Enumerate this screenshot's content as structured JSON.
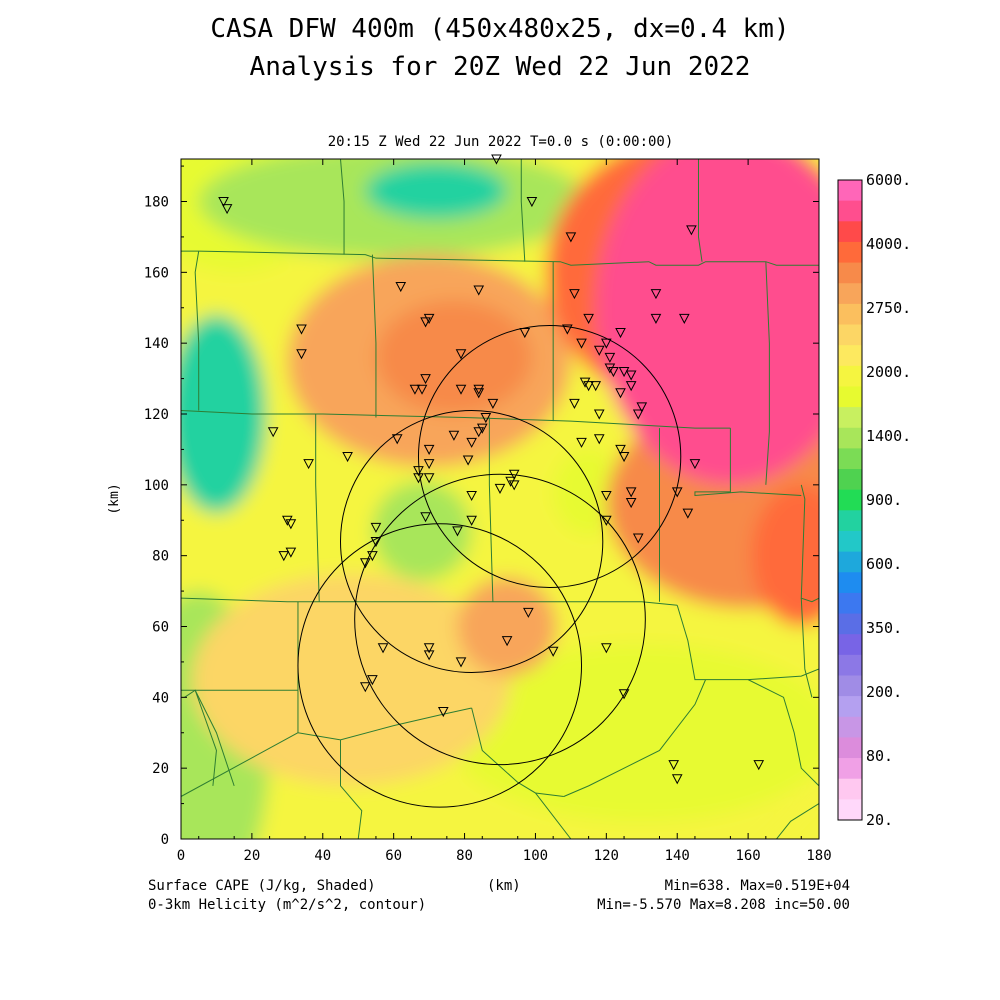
{
  "header": {
    "title_line1": "CASA DFW 400m (450x480x25, dx=0.4 km)",
    "title_line2": "Analysis for 20Z Wed 22 Jun 2022",
    "subtitle": "20:15 Z Wed 22 Jun 2022    T=0.0 s (0:00:00)"
  },
  "footer": {
    "left1": "Surface CAPE (J/kg, Shaded)",
    "left2": "0-3km Helicity (m^2/s^2, contour)",
    "center": "(km)",
    "right1": "Min=638. Max=0.519E+04",
    "right2": "Min=-5.570 Max=8.208 inc=50.00"
  },
  "chart_data": {
    "type": "heatmap",
    "title": "CASA DFW 400m (450x480x25, dx=0.4 km)",
    "xlabel": "(km)",
    "ylabel": "(km)",
    "xlim": [
      0,
      180
    ],
    "ylim": [
      0,
      192
    ],
    "x_ticks": [
      0,
      20,
      40,
      60,
      80,
      100,
      120,
      140,
      160,
      180
    ],
    "y_ticks": [
      0,
      20,
      40,
      60,
      80,
      100,
      120,
      140,
      160,
      180
    ],
    "grid": false,
    "field": "Surface CAPE (J/kg)",
    "field_min": 638,
    "field_max": 5190,
    "contour_field": "0-3km Helicity (m^2/s^2)",
    "contour_min": -5.57,
    "contour_max": 8.208,
    "contour_inc": 50.0,
    "colorbar": {
      "placement": "right",
      "labels": [
        "6000.",
        "4000.",
        "2750.",
        "2000.",
        "1400.",
        "900.",
        "600.",
        "350.",
        "200.",
        "80.",
        "20."
      ],
      "colors": [
        "#ff66b8",
        "#ff4e8e",
        "#ff4a4a",
        "#ff6a3a",
        "#f78a4a",
        "#f8a55a",
        "#fbbf5e",
        "#fcd665",
        "#fde95f",
        "#f5f540",
        "#e7fa30",
        "#c8f060",
        "#a8e65a",
        "#7bdc55",
        "#4fd250",
        "#22dc55",
        "#22d2a0",
        "#22c8c8",
        "#1ea8dc",
        "#1e8cf0",
        "#3c78f0",
        "#5a6ee6",
        "#7864e6",
        "#8c78e6",
        "#a08ce6",
        "#b4a0f0",
        "#c896e6",
        "#dc8cdc",
        "#f0a0e6",
        "#ffc8f0",
        "#ffd8fa"
      ]
    },
    "cape_blobs": [
      {
        "x": 90,
        "y": 100,
        "rx": 120,
        "ry": 130,
        "value": 1900
      },
      {
        "x": 15,
        "y": 180,
        "rx": 25,
        "ry": 20,
        "value": 1500
      },
      {
        "x": 10,
        "y": 120,
        "rx": 14,
        "ry": 28,
        "value": 800
      },
      {
        "x": 7,
        "y": 116,
        "rx": 6,
        "ry": 8,
        "value": 600
      },
      {
        "x": 60,
        "y": 180,
        "rx": 55,
        "ry": 16,
        "value": 1300
      },
      {
        "x": 72,
        "y": 183,
        "rx": 20,
        "ry": 8,
        "value": 850
      },
      {
        "x": 5,
        "y": 25,
        "rx": 20,
        "ry": 45,
        "value": 1200
      },
      {
        "x": 130,
        "y": 30,
        "rx": 55,
        "ry": 25,
        "value": 1500
      },
      {
        "x": 70,
        "y": 135,
        "rx": 40,
        "ry": 30,
        "value": 2300
      },
      {
        "x": 77,
        "y": 136,
        "rx": 22,
        "ry": 16,
        "value": 3000
      },
      {
        "x": 68,
        "y": 87,
        "rx": 14,
        "ry": 14,
        "value": 1300
      },
      {
        "x": 115,
        "y": 98,
        "rx": 10,
        "ry": 12,
        "value": 1500
      },
      {
        "x": 48,
        "y": 45,
        "rx": 45,
        "ry": 30,
        "value": 2250
      },
      {
        "x": 92,
        "y": 60,
        "rx": 14,
        "ry": 14,
        "value": 2550
      },
      {
        "x": 160,
        "y": 95,
        "rx": 40,
        "ry": 30,
        "value": 2900
      },
      {
        "x": 148,
        "y": 160,
        "rx": 45,
        "ry": 40,
        "value": 3300
      },
      {
        "x": 155,
        "y": 150,
        "rx": 38,
        "ry": 50,
        "value": 4400
      },
      {
        "x": 150,
        "y": 160,
        "rx": 14,
        "ry": 25,
        "value": 5190
      },
      {
        "x": 175,
        "y": 80,
        "rx": 14,
        "ry": 20,
        "value": 3400
      }
    ],
    "radar_rings": [
      {
        "x": 73,
        "y": 49,
        "r": 40
      },
      {
        "x": 82,
        "y": 84,
        "r": 37
      },
      {
        "x": 104,
        "y": 108,
        "r": 37
      },
      {
        "x": 90,
        "y": 62,
        "r": 41
      }
    ],
    "stations": [
      [
        12,
        180
      ],
      [
        13,
        178
      ],
      [
        89,
        192
      ],
      [
        99,
        180
      ],
      [
        110,
        170
      ],
      [
        144,
        172
      ],
      [
        62,
        156
      ],
      [
        84,
        155
      ],
      [
        111,
        154
      ],
      [
        134,
        154
      ],
      [
        34,
        144
      ],
      [
        70,
        147
      ],
      [
        69,
        146
      ],
      [
        97,
        143
      ],
      [
        109,
        144
      ],
      [
        115,
        147
      ],
      [
        134,
        147
      ],
      [
        142,
        147
      ],
      [
        124,
        143
      ],
      [
        34,
        137
      ],
      [
        79,
        137
      ],
      [
        120,
        140
      ],
      [
        113,
        140
      ],
      [
        118,
        138
      ],
      [
        121,
        136
      ],
      [
        121,
        133
      ],
      [
        122,
        132
      ],
      [
        125,
        132
      ],
      [
        69,
        130
      ],
      [
        114,
        129
      ],
      [
        115,
        128
      ],
      [
        117,
        128
      ],
      [
        127,
        131
      ],
      [
        127,
        128
      ],
      [
        84,
        127
      ],
      [
        84,
        126
      ],
      [
        79,
        127
      ],
      [
        66,
        127
      ],
      [
        68,
        127
      ],
      [
        124,
        126
      ],
      [
        88,
        123
      ],
      [
        111,
        123
      ],
      [
        130,
        122
      ],
      [
        129,
        120
      ],
      [
        86,
        119
      ],
      [
        118,
        120
      ],
      [
        26,
        115
      ],
      [
        85,
        116
      ],
      [
        61,
        113
      ],
      [
        77,
        114
      ],
      [
        82,
        112
      ],
      [
        84,
        115
      ],
      [
        113,
        112
      ],
      [
        118,
        113
      ],
      [
        124,
        110
      ],
      [
        36,
        106
      ],
      [
        47,
        108
      ],
      [
        70,
        110
      ],
      [
        70,
        106
      ],
      [
        125,
        108
      ],
      [
        145,
        106
      ],
      [
        67,
        104
      ],
      [
        67,
        102
      ],
      [
        70,
        102
      ],
      [
        81,
        107
      ],
      [
        94,
        103
      ],
      [
        93,
        101
      ],
      [
        94,
        100
      ],
      [
        90,
        99
      ],
      [
        82,
        97
      ],
      [
        120,
        97
      ],
      [
        127,
        98
      ],
      [
        140,
        98
      ],
      [
        127,
        95
      ],
      [
        143,
        92
      ],
      [
        69,
        91
      ],
      [
        120,
        90
      ],
      [
        82,
        90
      ],
      [
        30,
        90
      ],
      [
        31,
        89
      ],
      [
        55,
        88
      ],
      [
        78,
        87
      ],
      [
        129,
        85
      ],
      [
        55,
        84
      ],
      [
        31,
        81
      ],
      [
        29,
        80
      ],
      [
        54,
        80
      ],
      [
        52,
        78
      ],
      [
        98,
        64
      ],
      [
        57,
        54
      ],
      [
        70,
        54
      ],
      [
        70,
        52
      ],
      [
        79,
        50
      ],
      [
        92,
        56
      ],
      [
        105,
        53
      ],
      [
        120,
        54
      ],
      [
        54,
        45
      ],
      [
        52,
        43
      ],
      [
        125,
        41
      ],
      [
        74,
        36
      ],
      [
        139,
        21
      ],
      [
        140,
        17
      ],
      [
        163,
        21
      ]
    ],
    "county_lines": [
      [
        [
          0,
          166
        ],
        [
          5,
          166
        ],
        [
          52,
          165
        ],
        [
          55,
          164
        ],
        [
          107,
          163
        ],
        [
          110,
          162
        ],
        [
          132,
          163
        ],
        [
          134,
          162
        ],
        [
          146,
          162
        ],
        [
          148,
          163
        ],
        [
          165,
          163
        ],
        [
          168,
          162
        ],
        [
          180,
          162
        ]
      ],
      [
        [
          0,
          121
        ],
        [
          20,
          120
        ],
        [
          40,
          120
        ],
        [
          80,
          119
        ],
        [
          110,
          118
        ],
        [
          145,
          116
        ],
        [
          155,
          116
        ]
      ],
      [
        [
          0,
          68
        ],
        [
          30,
          67
        ],
        [
          40,
          67
        ],
        [
          60,
          67
        ],
        [
          110,
          67
        ],
        [
          130,
          67
        ],
        [
          140,
          66
        ]
      ],
      [
        [
          5,
          166
        ],
        [
          4,
          160
        ],
        [
          5,
          140
        ],
        [
          5,
          121
        ]
      ],
      [
        [
          45,
          192
        ],
        [
          46,
          180
        ],
        [
          46,
          165
        ]
      ],
      [
        [
          96,
          192
        ],
        [
          96,
          180
        ],
        [
          97,
          163
        ]
      ],
      [
        [
          54,
          165
        ],
        [
          55,
          140
        ],
        [
          55,
          119
        ]
      ],
      [
        [
          105,
          163
        ],
        [
          105,
          140
        ],
        [
          105,
          118
        ]
      ],
      [
        [
          146,
          192
        ],
        [
          146,
          170
        ],
        [
          147,
          163
        ]
      ],
      [
        [
          165,
          163
        ],
        [
          166,
          140
        ],
        [
          166,
          115
        ],
        [
          165,
          100
        ]
      ],
      [
        [
          155,
          116
        ],
        [
          155,
          98
        ],
        [
          145,
          98
        ],
        [
          145,
          97
        ],
        [
          158,
          98
        ],
        [
          175,
          97
        ]
      ],
      [
        [
          175,
          100
        ],
        [
          176,
          96
        ],
        [
          175,
          68
        ],
        [
          178,
          67
        ],
        [
          180,
          68
        ]
      ],
      [
        [
          38,
          120
        ],
        [
          38,
          100
        ],
        [
          39,
          67
        ]
      ],
      [
        [
          87,
          119
        ],
        [
          87,
          100
        ],
        [
          88,
          67
        ]
      ],
      [
        [
          135,
          116
        ],
        [
          135,
          100
        ],
        [
          135,
          67
        ]
      ],
      [
        [
          33,
          67
        ],
        [
          33,
          53
        ],
        [
          33,
          42
        ]
      ],
      [
        [
          0,
          42
        ],
        [
          33,
          42
        ]
      ],
      [
        [
          4,
          42
        ],
        [
          10,
          30
        ],
        [
          15,
          15
        ]
      ],
      [
        [
          1,
          40
        ],
        [
          4,
          42
        ],
        [
          10,
          25
        ],
        [
          9,
          15
        ]
      ],
      [
        [
          0,
          12
        ],
        [
          33,
          30
        ],
        [
          33,
          42
        ]
      ],
      [
        [
          33,
          30
        ],
        [
          45,
          28
        ],
        [
          60,
          32
        ],
        [
          73,
          35
        ],
        [
          82,
          37
        ]
      ],
      [
        [
          45,
          28
        ],
        [
          45,
          15
        ],
        [
          51,
          8
        ],
        [
          50,
          0
        ]
      ],
      [
        [
          82,
          37
        ],
        [
          85,
          25
        ],
        [
          95,
          16
        ],
        [
          100,
          13
        ],
        [
          108,
          12
        ]
      ],
      [
        [
          108,
          12
        ],
        [
          115,
          15
        ],
        [
          125,
          20
        ],
        [
          135,
          25
        ],
        [
          145,
          38
        ],
        [
          148,
          45
        ]
      ],
      [
        [
          140,
          66
        ],
        [
          143,
          56
        ],
        [
          145,
          45
        ],
        [
          160,
          45
        ],
        [
          175,
          46
        ],
        [
          180,
          48
        ]
      ],
      [
        [
          175,
          68
        ],
        [
          176,
          48
        ],
        [
          178,
          40
        ]
      ],
      [
        [
          100,
          13
        ],
        [
          110,
          0
        ]
      ],
      [
        [
          160,
          45
        ],
        [
          170,
          40
        ],
        [
          173,
          30
        ],
        [
          175,
          20
        ],
        [
          180,
          15
        ]
      ],
      [
        [
          168,
          0
        ],
        [
          172,
          5
        ],
        [
          180,
          10
        ]
      ]
    ]
  }
}
